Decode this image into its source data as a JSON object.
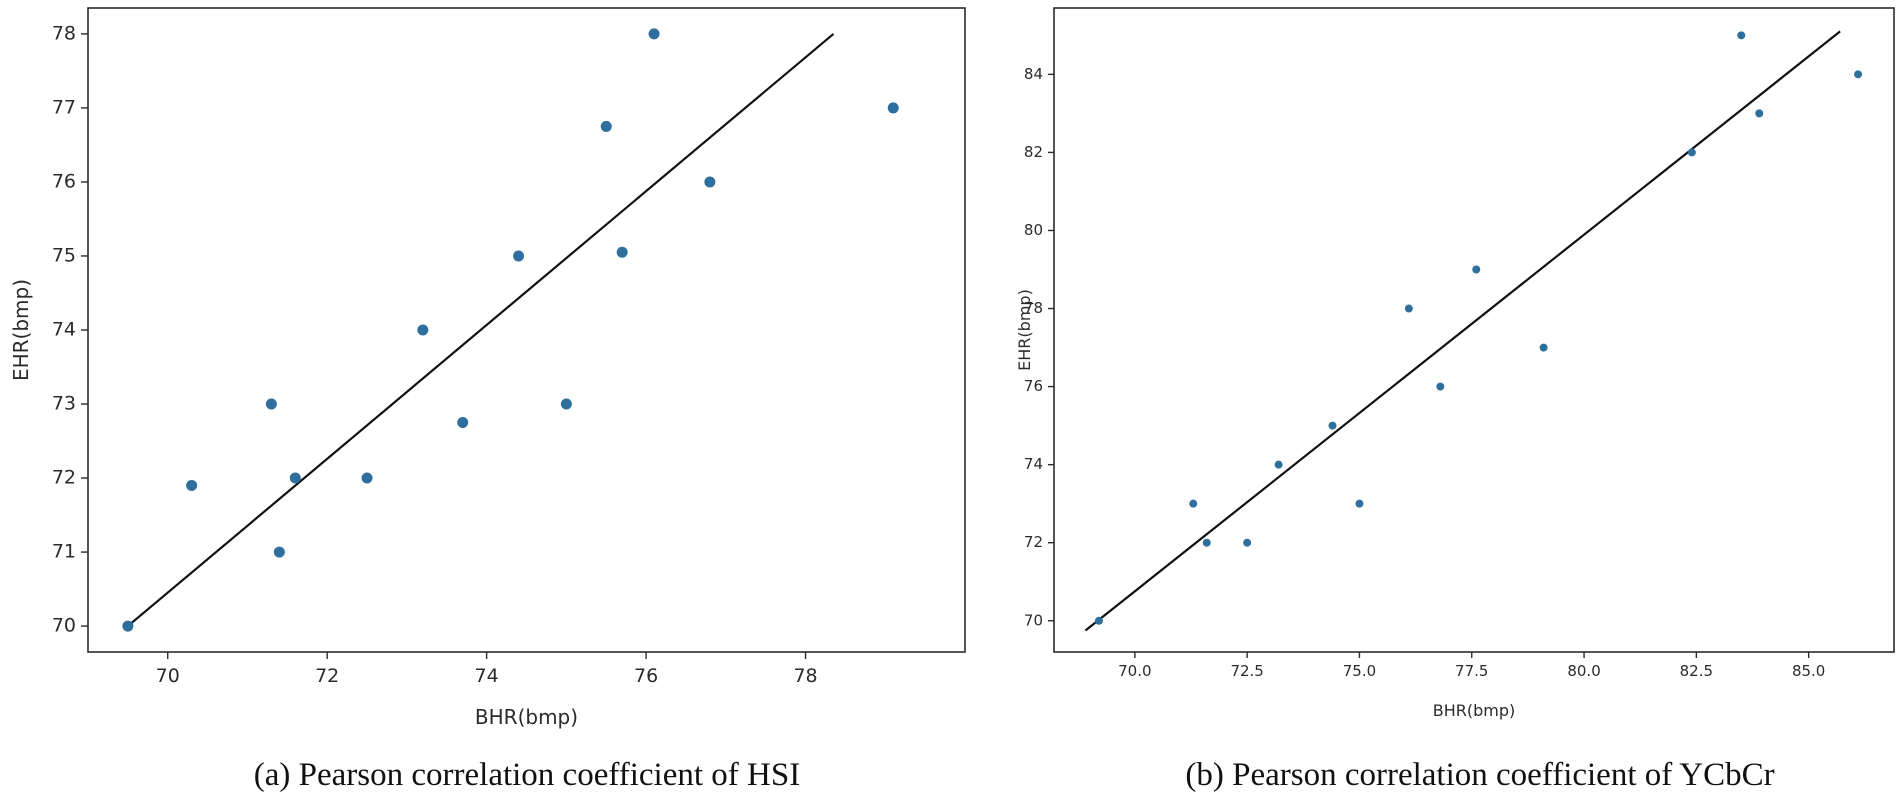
{
  "chart_data": [
    {
      "type": "scatter",
      "caption": "(a) Pearson correlation coefficient of HSI",
      "xlabel": "BHR(bmp)",
      "ylabel": "EHR(bmp)",
      "xlim": [
        69.0,
        80.0
      ],
      "ylim": [
        69.65,
        78.35
      ],
      "xticks": [
        70,
        72,
        74,
        76,
        78
      ],
      "xtick_labels": [
        "70",
        "72",
        "74",
        "76",
        "78"
      ],
      "yticks": [
        70,
        71,
        72,
        73,
        74,
        75,
        76,
        77,
        78
      ],
      "ytick_labels": [
        "70",
        "71",
        "72",
        "73",
        "74",
        "75",
        "76",
        "77",
        "78"
      ],
      "grid": false,
      "points": [
        {
          "x": 69.5,
          "y": 70.0
        },
        {
          "x": 70.3,
          "y": 71.9
        },
        {
          "x": 71.3,
          "y": 73.0
        },
        {
          "x": 71.4,
          "y": 71.0
        },
        {
          "x": 71.6,
          "y": 72.0
        },
        {
          "x": 72.5,
          "y": 72.0
        },
        {
          "x": 73.2,
          "y": 74.0
        },
        {
          "x": 73.7,
          "y": 72.75
        },
        {
          "x": 74.4,
          "y": 75.0
        },
        {
          "x": 75.0,
          "y": 73.0
        },
        {
          "x": 75.5,
          "y": 76.75
        },
        {
          "x": 75.7,
          "y": 75.05
        },
        {
          "x": 76.1,
          "y": 78.0
        },
        {
          "x": 76.8,
          "y": 76.0
        },
        {
          "x": 79.1,
          "y": 77.0
        }
      ],
      "fit_line": [
        {
          "x": 69.5,
          "y": 70.0
        },
        {
          "x": 78.35,
          "y": 78.0
        }
      ],
      "point_color": "#2e6f9e",
      "line_color": "#111111"
    },
    {
      "type": "scatter",
      "caption": "(b) Pearson correlation coefficient of YCbCr",
      "xlabel": "BHR(bmp)",
      "ylabel": "EHR(bmp)",
      "xlim": [
        68.2,
        86.9
      ],
      "ylim": [
        69.2,
        85.7
      ],
      "xticks": [
        70.0,
        72.5,
        75.0,
        77.5,
        80.0,
        82.5,
        85.0
      ],
      "xtick_labels": [
        "70.0",
        "72.5",
        "75.0",
        "77.5",
        "80.0",
        "82.5",
        "85.0"
      ],
      "yticks": [
        70,
        72,
        74,
        76,
        78,
        80,
        82,
        84
      ],
      "ytick_labels": [
        "70",
        "72",
        "74",
        "76",
        "78",
        "80",
        "82",
        "84"
      ],
      "grid": false,
      "points": [
        {
          "x": 69.2,
          "y": 70.0
        },
        {
          "x": 71.3,
          "y": 73.0
        },
        {
          "x": 71.6,
          "y": 72.0
        },
        {
          "x": 72.5,
          "y": 72.0
        },
        {
          "x": 73.2,
          "y": 74.0
        },
        {
          "x": 74.4,
          "y": 75.0
        },
        {
          "x": 75.0,
          "y": 73.0
        },
        {
          "x": 76.1,
          "y": 78.0
        },
        {
          "x": 76.8,
          "y": 76.0
        },
        {
          "x": 77.6,
          "y": 79.0
        },
        {
          "x": 79.1,
          "y": 77.0
        },
        {
          "x": 82.4,
          "y": 82.0
        },
        {
          "x": 83.5,
          "y": 85.0
        },
        {
          "x": 83.9,
          "y": 83.0
        },
        {
          "x": 86.1,
          "y": 84.0
        }
      ],
      "fit_line": [
        {
          "x": 68.9,
          "y": 69.75
        },
        {
          "x": 85.7,
          "y": 85.1
        }
      ],
      "point_color": "#2e6f9e",
      "line_color": "#111111"
    }
  ]
}
